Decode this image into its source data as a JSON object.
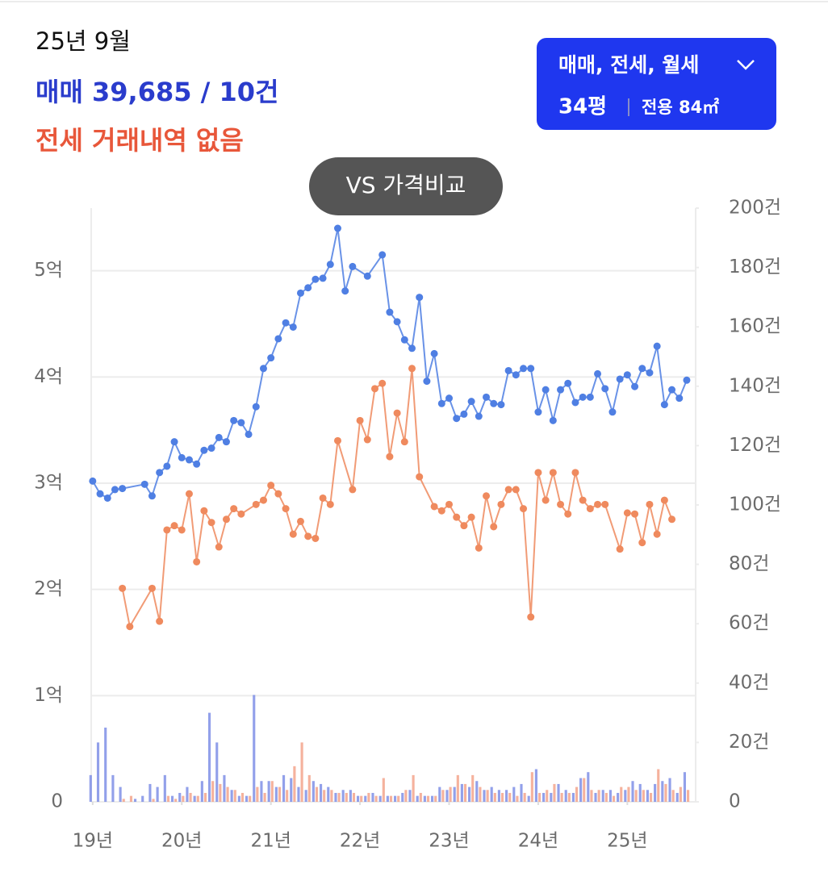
{
  "header": {
    "period": "25년 9월",
    "sale_summary": "매매 39,685 / 10건",
    "jeonse_summary": "전세 거래내역 없음"
  },
  "filter_button": {
    "deal_types": "매매, 전세, 월세",
    "size_pyeong": "34평",
    "area": "전용 84㎡"
  },
  "compare_button": "VS 가격비교",
  "chart_data": {
    "type": "line",
    "xlim": [
      -0.2,
      81.2
    ],
    "xticks": [
      {
        "value": 0,
        "label": "19년"
      },
      {
        "value": 12,
        "label": "20년"
      },
      {
        "value": 24,
        "label": "21년"
      },
      {
        "value": 36,
        "label": "22년"
      },
      {
        "value": 48,
        "label": "23년"
      },
      {
        "value": 60,
        "label": "24년"
      },
      {
        "value": 72,
        "label": "25년"
      }
    ],
    "ylim": [
      0,
      5.59
    ],
    "yticks": [
      0,
      {
        "value": 1,
        "label": "1억"
      },
      {
        "value": 2,
        "label": "2억"
      },
      {
        "value": 3,
        "label": "3억"
      },
      {
        "value": 4,
        "label": "4억"
      },
      {
        "value": 5,
        "label": "5억"
      }
    ],
    "y2lim": [
      0,
      200
    ],
    "y2ticks": [
      0,
      {
        "value": 20,
        "label": "20건"
      },
      {
        "value": 40,
        "label": "40건"
      },
      {
        "value": 60,
        "label": "60건"
      },
      {
        "value": 80,
        "label": "80건"
      },
      {
        "value": 100,
        "label": "100건"
      },
      {
        "value": 120,
        "label": "120건"
      },
      {
        "value": 140,
        "label": "140건"
      },
      {
        "value": 160,
        "label": "160건"
      },
      {
        "value": 180,
        "label": "180건"
      },
      {
        "value": 200,
        "label": "200건"
      }
    ],
    "grid": true,
    "series": [
      {
        "type": "bar",
        "axis": "y2",
        "color": "#7f8fe6",
        "x": [
          0,
          1,
          2,
          3,
          4,
          5,
          6,
          7,
          8,
          9,
          10,
          11,
          12,
          13,
          14,
          15,
          16,
          17,
          18,
          19,
          20,
          21,
          22,
          23,
          24,
          25,
          26,
          27,
          28,
          29,
          30,
          31,
          32,
          33,
          34,
          35,
          36,
          37,
          38,
          39,
          40,
          41,
          42,
          43,
          44,
          45,
          46,
          47,
          48,
          49,
          50,
          51,
          52,
          53,
          54,
          55,
          56,
          57,
          58,
          59,
          60,
          61,
          62,
          63,
          64,
          65,
          66,
          67,
          68,
          69,
          70,
          71,
          72,
          73,
          74,
          75,
          76,
          77,
          78,
          79,
          80
        ],
        "values": [
          9,
          20,
          25,
          9,
          5,
          0,
          1,
          2,
          6,
          5,
          9,
          2,
          3,
          5,
          2,
          7,
          30,
          20,
          9,
          4,
          2,
          2,
          36,
          7,
          7,
          5,
          9,
          8,
          5,
          4,
          7,
          6,
          5,
          3,
          4,
          4,
          2,
          2,
          3,
          2,
          2,
          2,
          3,
          4,
          2,
          2,
          2,
          5,
          4,
          5,
          6,
          5,
          7,
          4,
          5,
          4,
          4,
          5,
          6,
          2,
          11,
          3,
          3,
          6,
          4,
          3,
          8,
          10,
          3,
          4,
          4,
          3,
          4,
          7,
          6,
          4,
          6,
          7,
          8,
          3,
          10
        ]
      },
      {
        "type": "bar",
        "axis": "y2",
        "color": "#f3a58c",
        "x": [
          0,
          1,
          2,
          3,
          4,
          5,
          6,
          7,
          8,
          9,
          10,
          11,
          12,
          13,
          14,
          15,
          16,
          17,
          18,
          19,
          20,
          21,
          22,
          23,
          24,
          25,
          26,
          27,
          28,
          29,
          30,
          31,
          32,
          33,
          34,
          35,
          36,
          37,
          38,
          39,
          40,
          41,
          42,
          43,
          44,
          45,
          46,
          47,
          48,
          49,
          50,
          51,
          52,
          53,
          54,
          55,
          56,
          57,
          58,
          59,
          60,
          61,
          62,
          63,
          64,
          65,
          66,
          67,
          68,
          69,
          70,
          71,
          72,
          73,
          74,
          75,
          76,
          77,
          78,
          79,
          80
        ],
        "values": [
          0,
          0,
          0,
          0,
          1,
          2,
          0,
          0,
          1,
          0,
          2,
          1,
          2,
          3,
          2,
          3,
          7,
          6,
          5,
          4,
          3,
          2,
          5,
          3,
          7,
          5,
          4,
          12,
          20,
          9,
          5,
          4,
          4,
          3,
          3,
          3,
          2,
          3,
          2,
          8,
          2,
          2,
          4,
          9,
          3,
          2,
          2,
          4,
          5,
          9,
          6,
          9,
          5,
          4,
          3,
          3,
          3,
          2,
          3,
          10,
          3,
          4,
          6,
          3,
          3,
          5,
          8,
          4,
          4,
          3,
          2,
          5,
          5,
          4,
          4,
          3,
          11,
          6,
          4,
          5,
          4
        ]
      },
      {
        "type": "line",
        "color": "#ef8a5e",
        "x": [
          4,
          5,
          8,
          9,
          10,
          11,
          12,
          13,
          14,
          15,
          16,
          17,
          18,
          19,
          20,
          22,
          23,
          24,
          25,
          26,
          27,
          28,
          29,
          30,
          31,
          32,
          33,
          35,
          36,
          37,
          38,
          39,
          40,
          41,
          42,
          43,
          44,
          46,
          47,
          48,
          49,
          50,
          51,
          52,
          53,
          54,
          55,
          56,
          57,
          58,
          59,
          60,
          61,
          62,
          63,
          64,
          65,
          66,
          67,
          68,
          69,
          71,
          72,
          73,
          74,
          75,
          76,
          77,
          78
        ],
        "values": [
          2.01,
          1.65,
          2.01,
          1.7,
          2.56,
          2.6,
          2.56,
          2.9,
          2.26,
          2.74,
          2.63,
          2.4,
          2.66,
          2.76,
          2.71,
          2.8,
          2.84,
          2.98,
          2.9,
          2.76,
          2.52,
          2.64,
          2.5,
          2.48,
          2.86,
          2.8,
          3.4,
          2.94,
          3.59,
          3.41,
          3.89,
          3.94,
          3.25,
          3.66,
          3.39,
          4.08,
          3.06,
          2.78,
          2.74,
          2.8,
          2.68,
          2.6,
          2.68,
          2.39,
          2.88,
          2.59,
          2.8,
          2.94,
          2.94,
          2.76,
          1.74,
          3.1,
          2.84,
          3.1,
          2.8,
          2.71,
          3.1,
          2.84,
          2.76,
          2.8,
          2.8,
          2.38,
          2.72,
          2.71,
          2.44,
          2.8,
          2.52,
          2.84,
          2.66
        ]
      },
      {
        "type": "line",
        "color": "#4f7fe3",
        "x": [
          0,
          1,
          2,
          3,
          4,
          7,
          8,
          9,
          10,
          11,
          12,
          13,
          14,
          15,
          16,
          17,
          18,
          19,
          20,
          21,
          22,
          23,
          24,
          25,
          26,
          27,
          28,
          29,
          30,
          31,
          32,
          33,
          34,
          35,
          37,
          39,
          40,
          41,
          42,
          43,
          44,
          45,
          46,
          47,
          48,
          49,
          50,
          51,
          52,
          53,
          54,
          55,
          56,
          57,
          58,
          59,
          60,
          61,
          62,
          63,
          64,
          65,
          66,
          67,
          68,
          69,
          70,
          71,
          72,
          73,
          74,
          75,
          76,
          77,
          78,
          79,
          80
        ],
        "values": [
          3.02,
          2.9,
          2.86,
          2.94,
          2.95,
          2.99,
          2.88,
          3.1,
          3.16,
          3.39,
          3.24,
          3.22,
          3.18,
          3.31,
          3.33,
          3.43,
          3.39,
          3.59,
          3.57,
          3.46,
          3.72,
          4.08,
          4.18,
          4.36,
          4.51,
          4.47,
          4.79,
          4.84,
          4.92,
          4.93,
          5.06,
          5.4,
          4.81,
          5.04,
          4.95,
          5.15,
          4.61,
          4.52,
          4.35,
          4.27,
          4.75,
          3.96,
          4.22,
          3.75,
          3.8,
          3.61,
          3.65,
          3.77,
          3.63,
          3.81,
          3.75,
          3.74,
          4.06,
          4.02,
          4.08,
          4.08,
          3.67,
          3.88,
          3.59,
          3.88,
          3.94,
          3.76,
          3.81,
          3.81,
          4.03,
          3.89,
          3.67,
          3.98,
          4.02,
          3.91,
          4.08,
          4.04,
          4.29,
          3.74,
          3.88,
          3.8,
          3.97
        ]
      }
    ]
  }
}
